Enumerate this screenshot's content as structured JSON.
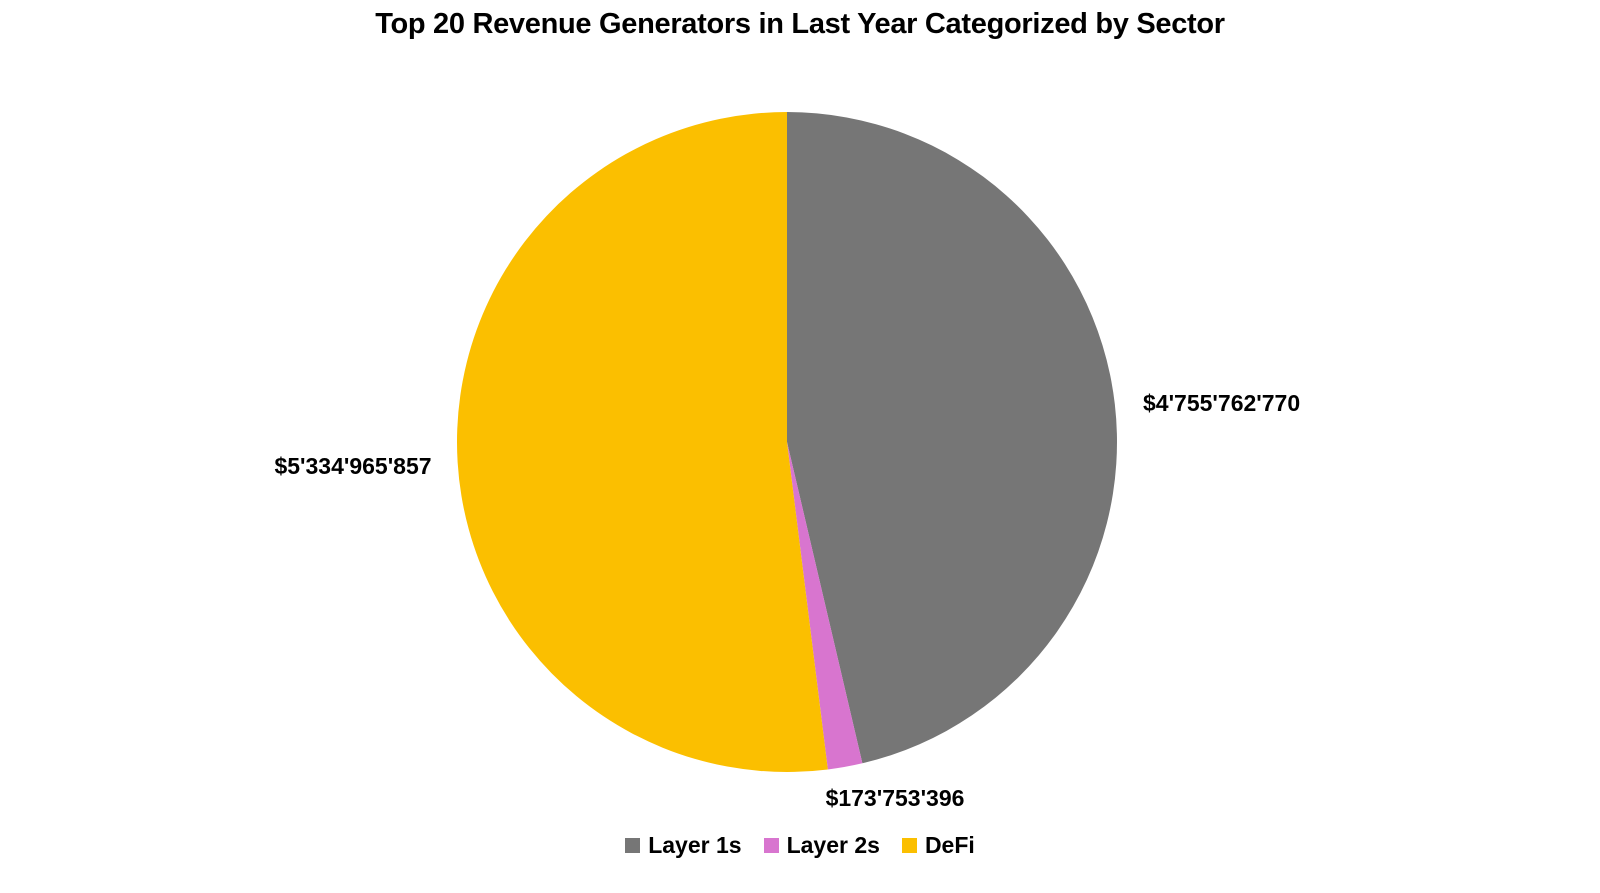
{
  "chart_data": {
    "type": "pie",
    "title": "Top 20 Revenue Generators in Last Year Categorized by Sector",
    "legend_position": "bottom",
    "slices": [
      {
        "label": "Layer 1s",
        "value": 4755762770,
        "data_label": "$4'755'762'770",
        "color": "#767676"
      },
      {
        "label": "Layer 2s",
        "value": 173753396,
        "data_label": "$173'753'396",
        "color": "#d875cf"
      },
      {
        "label": "DeFi",
        "value": 5334965857,
        "data_label": "$5'334'965'857",
        "color": "#fbbf00"
      }
    ]
  }
}
